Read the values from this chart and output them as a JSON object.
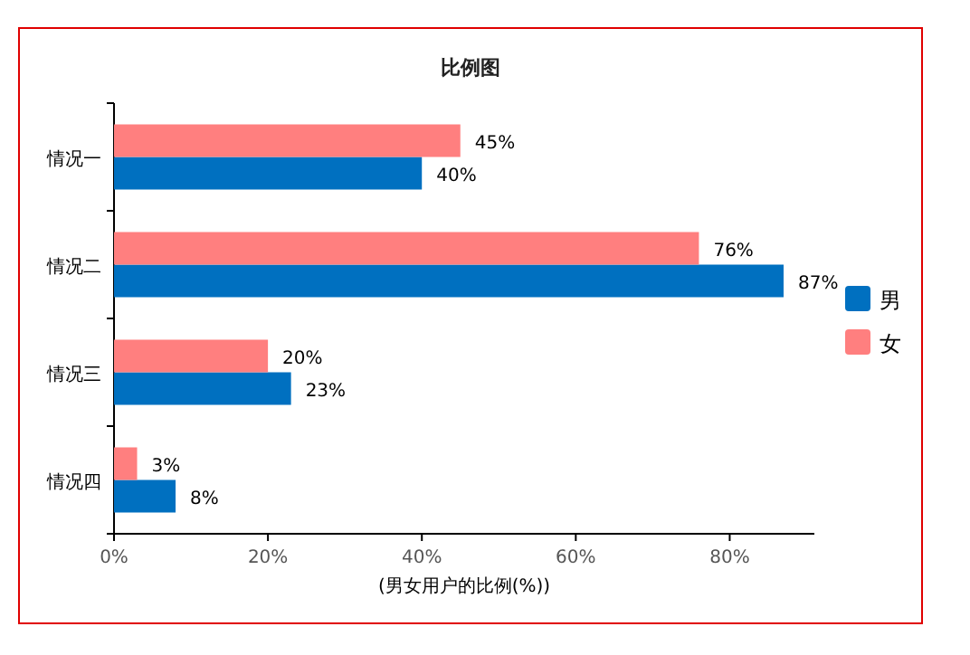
{
  "chart_data": {
    "type": "bar",
    "orientation": "horizontal",
    "title": "比例图",
    "xlabel": "(男女用户的比例(%))",
    "categories": [
      "情况一",
      "情况二",
      "情况三",
      "情况四"
    ],
    "series": [
      {
        "name": "男",
        "color": "#0070c0",
        "values": [
          40,
          87,
          23,
          8
        ],
        "value_labels": [
          "40%",
          "87%",
          "23%",
          "8%"
        ]
      },
      {
        "name": "女",
        "color": "#ff7f7f",
        "values": [
          45,
          76,
          20,
          3
        ],
        "value_labels": [
          "45%",
          "76%",
          "20%",
          "3%"
        ]
      }
    ],
    "xlim": [
      0,
      91
    ],
    "xticks": [
      {
        "value": 0,
        "label": "0%"
      },
      {
        "value": 20,
        "label": "20%"
      },
      {
        "value": 40,
        "label": "40%"
      },
      {
        "value": 60,
        "label": "60%"
      },
      {
        "value": 80,
        "label": "80%"
      }
    ],
    "grid": false,
    "legend": "right"
  }
}
